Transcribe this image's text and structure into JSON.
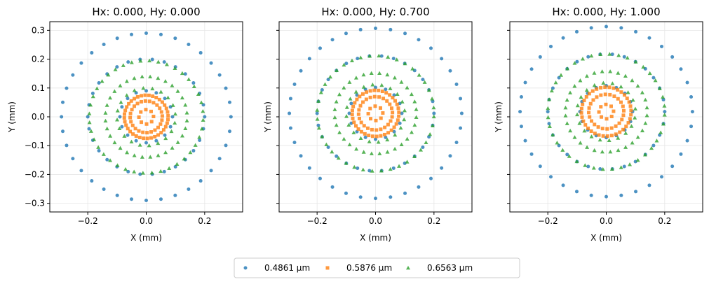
{
  "chart_data": {
    "type": "scatter",
    "shared_legend": {
      "placement": "bottom-center",
      "entries": [
        {
          "label": "0.4861 µm",
          "marker": "circle",
          "color": "#1f77b4"
        },
        {
          "label": "0.5876 µm",
          "marker": "square",
          "color": "#ff7f0e"
        },
        {
          "label": "0.6563 µm",
          "marker": "triangle",
          "color": "#2ca02c"
        }
      ]
    },
    "grid": true,
    "panels": [
      {
        "title": "Hx: 0.000, Hy: 0.000",
        "xlabel": "X (mm)",
        "ylabel": "Y (mm)",
        "xlim": [
          -0.33,
          0.33
        ],
        "ylim": [
          -0.33,
          0.33
        ],
        "xticks": [
          "−0.2",
          "0.0",
          "0.2"
        ],
        "yticks": [
          "0.3",
          "0.2",
          "0.1",
          "0.0",
          "−0.1",
          "−0.2",
          "−0.3"
        ],
        "show_yticklabels": true,
        "series": [
          {
            "name": "0.4861 µm",
            "rings": [
              {
                "r": 0.29,
                "n": 36,
                "ry": 0.29
              },
              {
                "r": 0.2,
                "n": 30,
                "ry": 0.2
              },
              {
                "r": 0.09,
                "n": 16,
                "ry": 0.09
              }
            ],
            "cy": 0.0
          },
          {
            "name": "0.5876 µm",
            "rings": [
              {
                "r": 0.075,
                "n": 36,
                "ry": 0.075
              },
              {
                "r": 0.055,
                "n": 24,
                "ry": 0.055
              },
              {
                "r": 0.025,
                "n": 8,
                "ry": 0.025
              }
            ],
            "cy": 0.0
          },
          {
            "name": "0.6563 µm",
            "rings": [
              {
                "r": 0.195,
                "n": 40,
                "ry": 0.195
              },
              {
                "r": 0.14,
                "n": 32,
                "ry": 0.14
              },
              {
                "r": 0.1,
                "n": 20,
                "ry": 0.1
              }
            ],
            "cy": 0.0
          }
        ]
      },
      {
        "title": "Hx: 0.000, Hy: 0.700",
        "xlabel": "X (mm)",
        "ylabel": "Y (mm)",
        "xlim": [
          -0.33,
          0.33
        ],
        "ylim": [
          -0.33,
          0.33
        ],
        "xticks": [
          "−0.2",
          "0.0",
          "0.2"
        ],
        "yticks": [],
        "show_yticklabels": false,
        "series": [
          {
            "name": "0.4861 µm",
            "rings": [
              {
                "r": 0.295,
                "n": 36,
                "ry": 0.295
              },
              {
                "r": 0.2,
                "n": 30,
                "ry": 0.2
              },
              {
                "r": 0.09,
                "n": 16,
                "ry": 0.09
              }
            ],
            "cy": 0.012
          },
          {
            "name": "0.5876 µm",
            "rings": [
              {
                "r": 0.08,
                "n": 36,
                "ry": 0.08
              },
              {
                "r": 0.058,
                "n": 24,
                "ry": 0.058
              },
              {
                "r": 0.025,
                "n": 8,
                "ry": 0.025
              }
            ],
            "cy": 0.012
          },
          {
            "name": "0.6563 µm",
            "rings": [
              {
                "r": 0.2,
                "n": 40,
                "ry": 0.2
              },
              {
                "r": 0.14,
                "n": 32,
                "ry": 0.14
              },
              {
                "r": 0.1,
                "n": 20,
                "ry": 0.1
              }
            ],
            "cy": 0.012
          }
        ]
      },
      {
        "title": "Hx: 0.000, Hy: 1.000",
        "xlabel": "X (mm)",
        "ylabel": "Y (mm)",
        "xlim": [
          -0.33,
          0.33
        ],
        "ylim": [
          -0.33,
          0.33
        ],
        "xticks": [
          "−0.2",
          "0.0",
          "0.2"
        ],
        "yticks": [],
        "show_yticklabels": false,
        "series": [
          {
            "name": "0.4861 µm",
            "rings": [
              {
                "r": 0.295,
                "n": 36,
                "ry": 0.295
              },
              {
                "r": 0.2,
                "n": 30,
                "ry": 0.2
              },
              {
                "r": 0.09,
                "n": 16,
                "ry": 0.09
              }
            ],
            "cy": 0.018
          },
          {
            "name": "0.5876 µm",
            "rings": [
              {
                "r": 0.085,
                "n": 36,
                "ry": 0.085
              },
              {
                "r": 0.06,
                "n": 24,
                "ry": 0.06
              },
              {
                "r": 0.025,
                "n": 8,
                "ry": 0.025
              }
            ],
            "cy": 0.018
          },
          {
            "name": "0.6563 µm",
            "rings": [
              {
                "r": 0.2,
                "n": 40,
                "ry": 0.2
              },
              {
                "r": 0.14,
                "n": 32,
                "ry": 0.14
              },
              {
                "r": 0.1,
                "n": 20,
                "ry": 0.1
              }
            ],
            "cy": 0.018
          }
        ]
      }
    ]
  }
}
